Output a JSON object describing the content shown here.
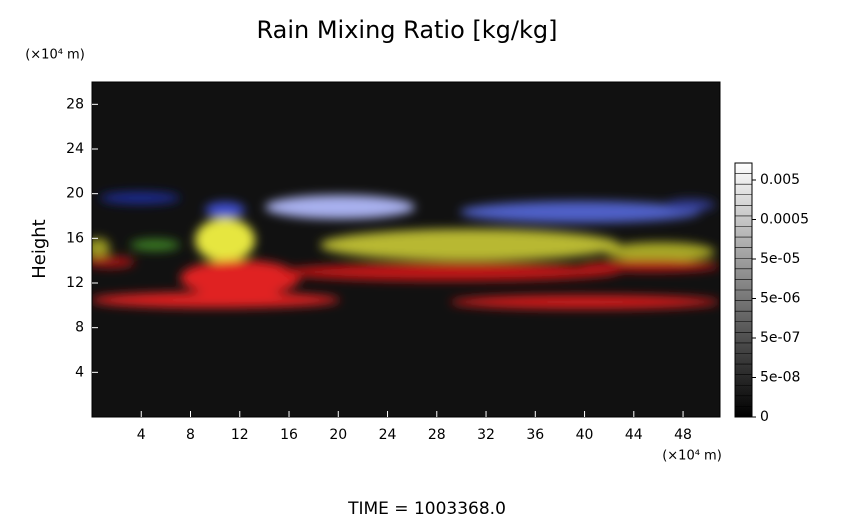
{
  "chart_data": {
    "type": "image",
    "title": "Rain Mixing Ratio [kg/kg]",
    "y_label": "Height",
    "x_unit": "(×10⁴ m)",
    "y_unit": "(×10⁴ m)",
    "time_label": "TIME = 1003368.0",
    "xlim": [
      0,
      51
    ],
    "ylim": [
      0,
      30
    ],
    "xticks": [
      4,
      8,
      12,
      16,
      20,
      24,
      28,
      32,
      36,
      40,
      44,
      48
    ],
    "yticks": [
      4,
      8,
      12,
      16,
      20,
      24,
      28
    ],
    "colorbar_ticks": [
      0.005,
      0.0005,
      {
        "value": 5e-05,
        "label": "5e-05"
      },
      {
        "value": 5e-06,
        "label": "5e-06"
      },
      {
        "value": 5e-07,
        "label": "5e-07"
      },
      {
        "value": 5e-08,
        "label": "5e-08"
      },
      0
    ]
  }
}
